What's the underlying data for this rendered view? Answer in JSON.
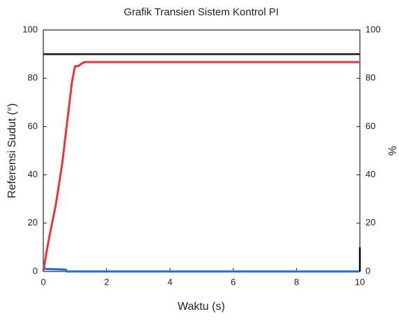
{
  "chart_data": {
    "type": "line",
    "title": "Grafik Transien Sistem Kontrol PI",
    "xlabel": "Waktu (s)",
    "ylabel": "Referensi Sudut (°)",
    "y2label": "%",
    "xlim": [
      0,
      10
    ],
    "xticks": [
      0,
      2,
      4,
      6,
      8,
      10
    ],
    "ylim": [
      0,
      100
    ],
    "yticks": [
      0,
      20,
      40,
      60,
      80,
      100
    ],
    "y2lim": [
      0,
      100
    ],
    "y2ticks": [
      0,
      20,
      40,
      60,
      80,
      100
    ],
    "series": [
      {
        "color": "#333333",
        "x": [
          0,
          10
        ],
        "values": [
          90,
          90
        ]
      },
      {
        "color": "#e8333a",
        "x": [
          0,
          0.1,
          0.2,
          0.4,
          0.6,
          0.8,
          0.9,
          1.0,
          1.1,
          1.2,
          1.3,
          10
        ],
        "values": [
          0,
          8,
          15,
          28,
          45,
          67,
          78,
          85,
          85,
          86,
          86.7,
          86.7
        ]
      },
      {
        "color": "#1f6fd0",
        "x": [
          0,
          0.1,
          0.7,
          0.75,
          10
        ],
        "values": [
          1.5,
          1,
          0.8,
          0,
          0
        ]
      },
      {
        "color": "#000000",
        "axis": "y2",
        "x": [
          10,
          10
        ],
        "values": [
          0,
          10
        ]
      }
    ]
  }
}
